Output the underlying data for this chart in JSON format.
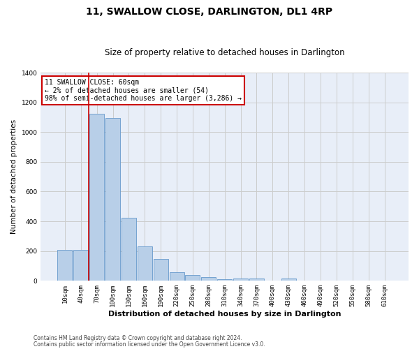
{
  "title": "11, SWALLOW CLOSE, DARLINGTON, DL1 4RP",
  "subtitle": "Size of property relative to detached houses in Darlington",
  "xlabel": "Distribution of detached houses by size in Darlington",
  "ylabel": "Number of detached properties",
  "categories": [
    "10sqm",
    "40sqm",
    "70sqm",
    "100sqm",
    "130sqm",
    "160sqm",
    "190sqm",
    "220sqm",
    "250sqm",
    "280sqm",
    "310sqm",
    "340sqm",
    "370sqm",
    "400sqm",
    "430sqm",
    "460sqm",
    "490sqm",
    "520sqm",
    "550sqm",
    "580sqm",
    "610sqm"
  ],
  "values": [
    208,
    210,
    1125,
    1095,
    425,
    230,
    148,
    58,
    38,
    25,
    12,
    14,
    17,
    0,
    15,
    0,
    0,
    0,
    0,
    0,
    0
  ],
  "bar_color": "#b8cfe8",
  "bar_edge_color": "#6699cc",
  "grid_color": "#cccccc",
  "bg_color": "#e8eef8",
  "annotation_text_line1": "11 SWALLOW CLOSE: 60sqm",
  "annotation_text_line2": "← 2% of detached houses are smaller (54)",
  "annotation_text_line3": "98% of semi-detached houses are larger (3,286) →",
  "annotation_box_facecolor": "#ffffff",
  "annotation_box_edgecolor": "#cc0000",
  "vline_color": "#cc0000",
  "vline_x": 1.5,
  "footer_line1": "Contains HM Land Registry data © Crown copyright and database right 2024.",
  "footer_line2": "Contains public sector information licensed under the Open Government Licence v3.0.",
  "ylim": [
    0,
    1400
  ],
  "yticks": [
    0,
    200,
    400,
    600,
    800,
    1000,
    1200,
    1400
  ],
  "title_fontsize": 10,
  "subtitle_fontsize": 8.5,
  "xlabel_fontsize": 8,
  "ylabel_fontsize": 7.5,
  "tick_fontsize": 6.5,
  "annotation_fontsize": 7,
  "footer_fontsize": 5.5
}
